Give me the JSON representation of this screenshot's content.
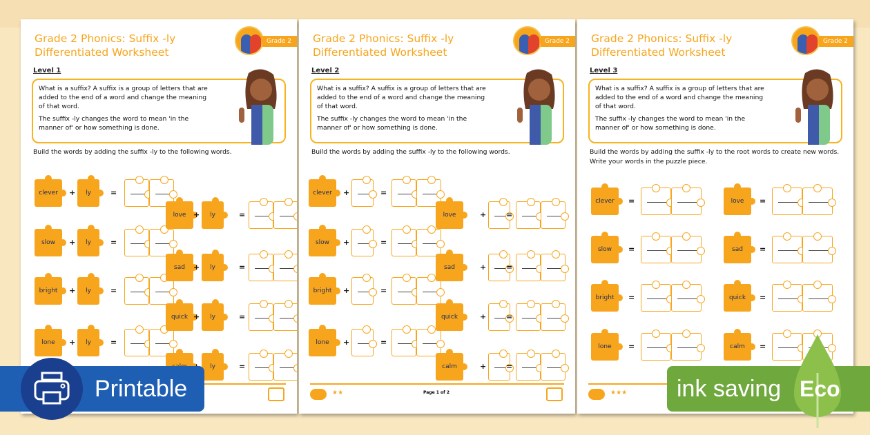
{
  "worksheet": {
    "title_line1": "Grade 2 Phonics: Suffix -ly",
    "title_line2": "Differentiated Worksheet",
    "grade_tag": "Grade 2",
    "box_p1": "What is a suffix? A suffix is a group of letters that are added to the end of a word and change the meaning of that word.",
    "box_p2": "The suffix -ly changes the word to mean 'in the manner of' or how something is done.",
    "suffix": "ly",
    "plus": "+",
    "equals": "=",
    "footer_page": "Page 1 of 2"
  },
  "pages": [
    {
      "level": "Level 1",
      "instruction": "Build the words by adding the suffix -ly to the following words.",
      "stars": "★★"
    },
    {
      "level": "Level 2",
      "instruction": "Build the words by adding the suffix -ly to the following words.",
      "stars": "★★"
    },
    {
      "level": "Level 3",
      "instruction": "Build the words by adding the suffix -ly to the root words to create new words. Write your words in the puzzle piece.",
      "stars": "★★★"
    }
  ],
  "words_left": [
    "clever",
    "slow",
    "bright",
    "lone"
  ],
  "words_right": [
    "love",
    "sad",
    "quick",
    "calm"
  ],
  "badges": {
    "printable": "Printable",
    "ink_saving": "ink saving",
    "eco": "Eco",
    "printer_icon": "printer-icon",
    "leaf_icon": "leaf-icon"
  },
  "colors": {
    "accent": "#f7a51c",
    "printable": "#1e5fb4",
    "eco": "#6fa83d",
    "background": "#f9e7c0"
  }
}
